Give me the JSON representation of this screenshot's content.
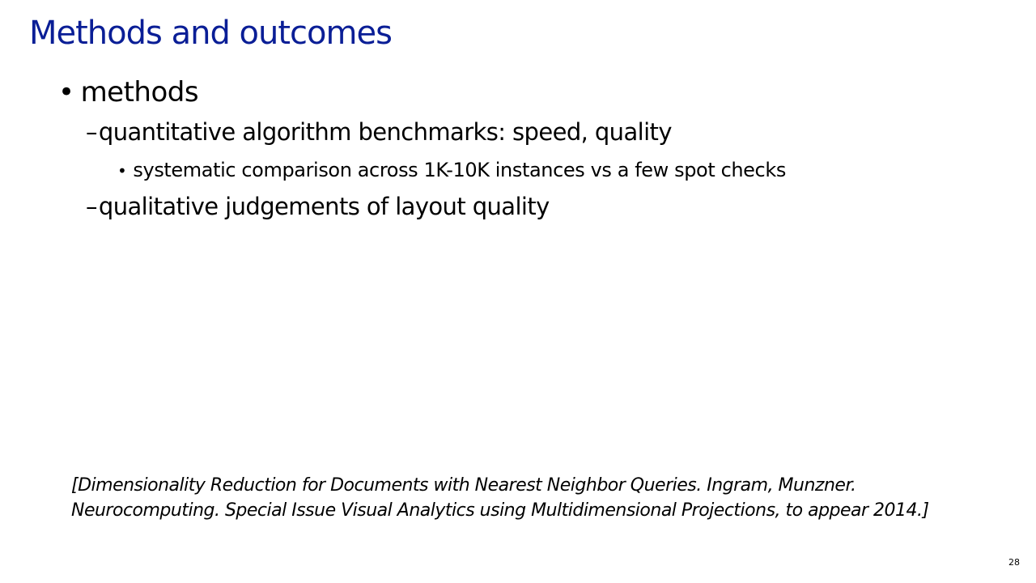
{
  "slide": {
    "title": "Methods and outcomes",
    "bullets": {
      "level1": {
        "marker": "•",
        "text": "methods"
      },
      "level2_a": {
        "marker": "–",
        "text": "quantitative algorithm benchmarks: speed, quality"
      },
      "level3": {
        "marker": "•",
        "text": "systematic comparison across 1K-10K instances vs a few spot checks"
      },
      "level2_b": {
        "marker": "–",
        "text": "qualitative judgements of layout quality"
      }
    },
    "citation": {
      "line1": "[Dimensionality Reduction for Documents with Nearest Neighbor Queries. Ingram, Munzner.",
      "line2": "Neurocomputing. Special Issue Visual Analytics using Multidimensional Projections, to appear 2014.]"
    },
    "page_number": "28"
  },
  "colors": {
    "title": "#0a1e96",
    "text": "#000000",
    "background": "#ffffff"
  }
}
